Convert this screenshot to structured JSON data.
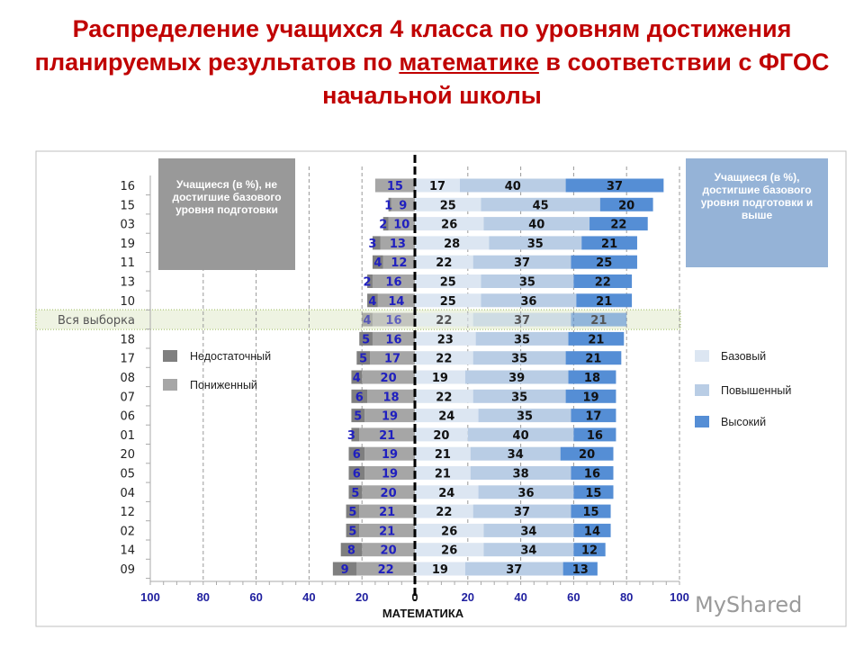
{
  "title": {
    "part1": "Распределение учащихся 4 класса по уровням достижения планируемых результатов по ",
    "underlined": "математике",
    "part2": " в соответствии с ФГОС начальной школы"
  },
  "left_box": "Учащиеся (в %), не достигшие базового уровня подготовки",
  "right_box": "Учащиеся (в %), достигшие базового уровня подготовки и выше",
  "watermark": "MyShared",
  "chart_data": {
    "type": "bar",
    "orientation": "horizontal-diverging-stacked",
    "xlabel": "МАТЕМАТИКА",
    "xlim": [
      -100,
      100
    ],
    "x_ticks": [
      "100",
      "80",
      "60",
      "40",
      "20",
      "0",
      "20",
      "40",
      "60",
      "80",
      "100"
    ],
    "grid": "vertical dashed",
    "highlight_category": "Вся выборка",
    "categories": [
      "16",
      "15",
      "03",
      "19",
      "11",
      "13",
      "10",
      "Вся выборка",
      "18",
      "17",
      "08",
      "07",
      "06",
      "01",
      "20",
      "05",
      "04",
      "12",
      "02",
      "14",
      "09"
    ],
    "series": [
      {
        "name": "Недостаточный",
        "side": "left",
        "color": "#7f7f7f",
        "values": [
          0,
          1,
          2,
          3,
          4,
          2,
          4,
          4,
          5,
          5,
          4,
          6,
          5,
          3,
          6,
          6,
          5,
          5,
          5,
          8,
          9
        ]
      },
      {
        "name": "Пониженный",
        "side": "left",
        "color": "#a6a6a6",
        "values": [
          15,
          9,
          10,
          13,
          12,
          16,
          14,
          16,
          16,
          17,
          20,
          18,
          19,
          21,
          19,
          19,
          20,
          21,
          21,
          20,
          22
        ]
      },
      {
        "name": "Базовый",
        "side": "right",
        "color": "#dce6f2",
        "values": [
          17,
          25,
          26,
          28,
          22,
          25,
          25,
          22,
          23,
          22,
          19,
          22,
          24,
          20,
          21,
          21,
          24,
          22,
          26,
          26,
          19
        ]
      },
      {
        "name": "Повышенный",
        "side": "right",
        "color": "#b9cde5",
        "values": [
          40,
          45,
          40,
          35,
          37,
          35,
          36,
          37,
          35,
          35,
          39,
          35,
          35,
          40,
          34,
          38,
          36,
          37,
          34,
          34,
          37
        ]
      },
      {
        "name": "Высокий",
        "side": "right",
        "color": "#558ed5",
        "values": [
          37,
          20,
          22,
          21,
          25,
          22,
          21,
          21,
          21,
          21,
          18,
          19,
          17,
          16,
          20,
          16,
          15,
          15,
          14,
          12,
          13
        ]
      }
    ],
    "legend": {
      "left": [
        "Недостаточный",
        "Пониженный"
      ],
      "right": [
        "Базовый",
        "Повышенный",
        "Высокий"
      ]
    }
  }
}
